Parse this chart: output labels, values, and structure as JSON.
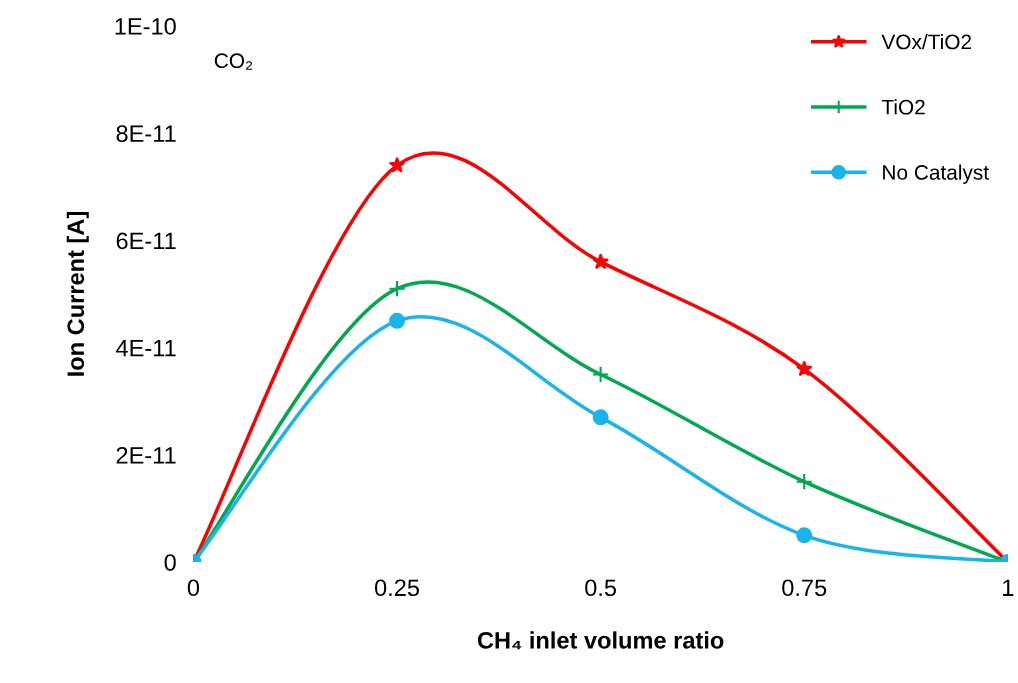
{
  "chart_data": {
    "type": "line",
    "xlabel": "CH₄ inlet volume ratio",
    "ylabel": "Ion Current [A]",
    "annotations": [
      "CO₂"
    ],
    "x": [
      0,
      0.25,
      0.5,
      0.75,
      1
    ],
    "xlim": [
      0,
      1
    ],
    "xticks": [
      0,
      0.25,
      0.5,
      0.75,
      1
    ],
    "ylim": [
      0,
      1e-10
    ],
    "yticks": [
      0,
      {
        "value": 2e-11,
        "label": "2E-11"
      },
      {
        "value": 4e-11,
        "label": "4E-11"
      },
      {
        "value": 6e-11,
        "label": "6E-11"
      },
      {
        "value": 8e-11,
        "label": "8E-11"
      },
      {
        "value": 1e-10,
        "label": "1E-10"
      }
    ],
    "grid": false,
    "legend": "top right",
    "line_style": "solid",
    "series": [
      {
        "name": "VOx/TiO2",
        "color": "#ff0000",
        "marker": "star",
        "values": [
          0,
          7.4e-11,
          5.6e-11,
          3.6e-11,
          0
        ]
      },
      {
        "name": "TiO2",
        "color": "#00a84f",
        "marker": "cross",
        "values": [
          0,
          5.1e-11,
          3.5e-11,
          1.5e-11,
          0
        ]
      },
      {
        "name": "No Catalyst",
        "color": "#19b4ea",
        "marker": "circle",
        "values": [
          0,
          4.5e-11,
          2.7e-11,
          5e-12,
          0
        ]
      }
    ]
  }
}
